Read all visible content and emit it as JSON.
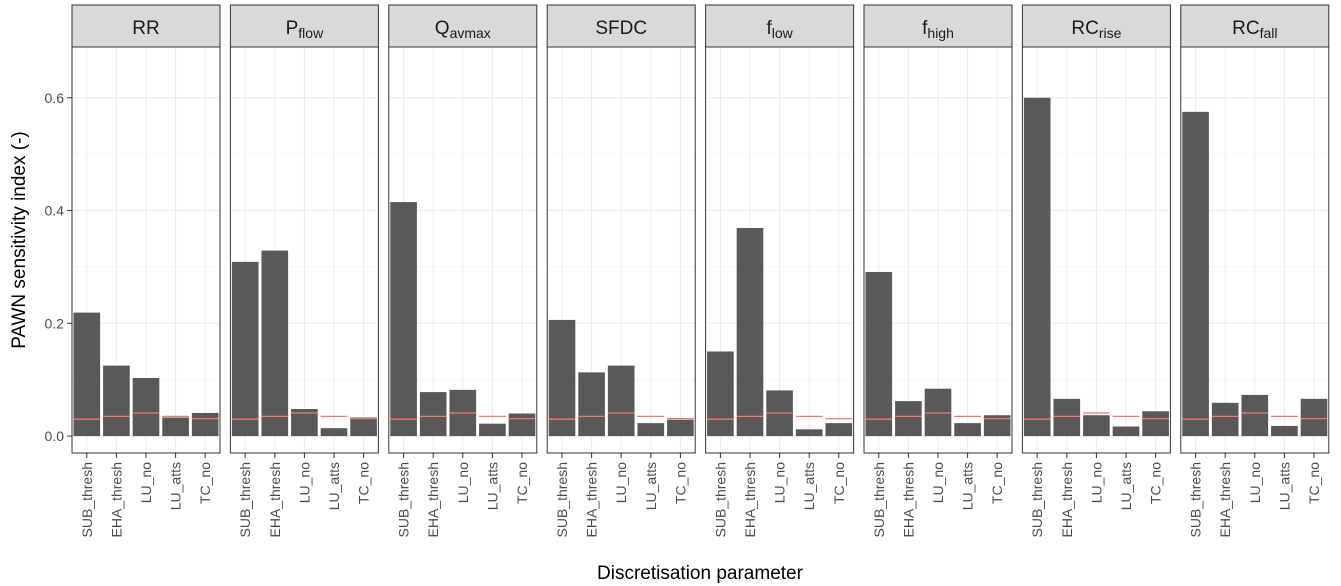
{
  "chart_data": {
    "type": "bar",
    "ylabel": "PAWN sensitivity index (-)",
    "xlabel": "Discretisation parameter",
    "ylim": [
      -0.03,
      0.69
    ],
    "yticks": [
      0.0,
      0.2,
      0.4,
      0.6
    ],
    "ytick_labels": [
      "0.0",
      "0.2",
      "0.4",
      "0.6"
    ],
    "grid": true,
    "categories": [
      "SUB_thresh",
      "EHA_thresh",
      "LU_no",
      "LU_atts",
      "TC_no"
    ],
    "colors": {
      "bar": "#595959",
      "threshold": "#f8766d",
      "strip": "#d9d9d9",
      "grid": "#ebebeb",
      "frame": "#333333"
    },
    "panels": [
      {
        "title": "RR",
        "title_sub": "",
        "values": [
          0.219,
          0.125,
          0.103,
          0.033,
          0.041
        ],
        "thresholds": [
          0.03,
          0.035,
          0.041,
          0.035,
          0.031
        ]
      },
      {
        "title": "P",
        "title_sub": "flow",
        "values": [
          0.309,
          0.329,
          0.048,
          0.014,
          0.033
        ],
        "thresholds": [
          0.03,
          0.035,
          0.041,
          0.035,
          0.031
        ]
      },
      {
        "title": "Q",
        "title_sub": "avmax",
        "values": [
          0.415,
          0.078,
          0.082,
          0.022,
          0.04
        ],
        "thresholds": [
          0.03,
          0.035,
          0.041,
          0.035,
          0.031
        ]
      },
      {
        "title": "SFDC",
        "title_sub": "",
        "values": [
          0.206,
          0.113,
          0.125,
          0.023,
          0.029
        ],
        "thresholds": [
          0.03,
          0.035,
          0.041,
          0.035,
          0.031
        ]
      },
      {
        "title": "f",
        "title_sub": "low",
        "values": [
          0.15,
          0.369,
          0.081,
          0.012,
          0.023
        ],
        "thresholds": [
          0.03,
          0.035,
          0.041,
          0.035,
          0.031
        ]
      },
      {
        "title": "f",
        "title_sub": "high",
        "values": [
          0.291,
          0.062,
          0.084,
          0.023,
          0.037
        ],
        "thresholds": [
          0.03,
          0.035,
          0.041,
          0.035,
          0.031
        ]
      },
      {
        "title": "RC",
        "title_sub": "rise",
        "values": [
          0.6,
          0.066,
          0.037,
          0.017,
          0.044
        ],
        "thresholds": [
          0.03,
          0.035,
          0.041,
          0.035,
          0.031
        ]
      },
      {
        "title": "RC",
        "title_sub": "fall",
        "values": [
          0.575,
          0.059,
          0.073,
          0.018,
          0.066
        ],
        "thresholds": [
          0.03,
          0.035,
          0.041,
          0.035,
          0.031
        ]
      }
    ]
  }
}
